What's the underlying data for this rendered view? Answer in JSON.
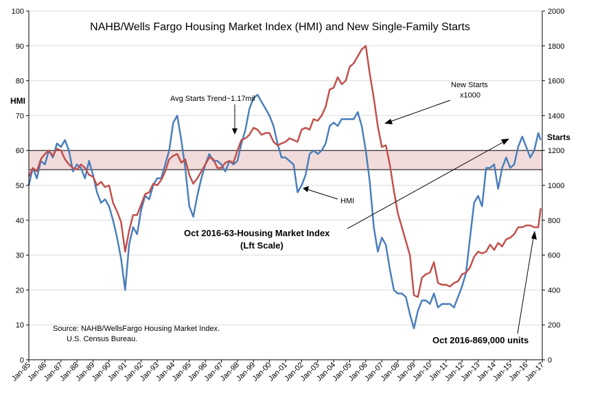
{
  "chart_data": {
    "type": "line",
    "title": "NAHB/Wells Fargo Housing Market Index (HMI) and New Single-Family Starts",
    "y_left_label": "HMI",
    "y_right_label": "Starts",
    "y_left_ticks": [
      "0",
      "10",
      "20",
      "30",
      "40",
      "50",
      "60",
      "70",
      "80",
      "90",
      "100"
    ],
    "y_right_ticks": [
      "0",
      "200",
      "400",
      "600",
      "800",
      "1000",
      "1200",
      "1400",
      "1600",
      "1800",
      "2000"
    ],
    "ylim_left": [
      0,
      100
    ],
    "ylim_right": [
      0,
      2000
    ],
    "x_tick_labels": [
      "Jan-85",
      "Jan-86",
      "Jan-87",
      "Jan-88",
      "Jan-89",
      "Jan-90",
      "Jan-91",
      "Jan-92",
      "Jan-93",
      "Jan-94",
      "Jan-95",
      "Jan-96",
      "Jan-97",
      "Jan-98",
      "Jan-99",
      "Jan-00",
      "Jan-01",
      "Jan-02",
      "Jan-03",
      "Jan-04",
      "Jan-05",
      "Jan-06",
      "Jan-07",
      "Jan-08",
      "Jan-09",
      "Jan-10",
      "Jan-11",
      "Jan-12",
      "Jan-13",
      "Jan-14",
      "Jan-15",
      "Jan-16",
      "Jan-17"
    ],
    "x_range_years": [
      1985,
      2017
    ],
    "grid": "horizontal",
    "band": {
      "axis": "left",
      "from": 54.5,
      "to": 60
    },
    "series": [
      {
        "key": "hmi",
        "axis": "left",
        "color": "#4a7ebb",
        "points": [
          [
            1985.0,
            50
          ],
          [
            1985.25,
            55
          ],
          [
            1985.5,
            52
          ],
          [
            1985.75,
            57
          ],
          [
            1986.0,
            56
          ],
          [
            1986.25,
            60
          ],
          [
            1986.5,
            58
          ],
          [
            1986.75,
            62
          ],
          [
            1987.0,
            61
          ],
          [
            1987.25,
            63
          ],
          [
            1987.5,
            60
          ],
          [
            1987.75,
            54
          ],
          [
            1988.0,
            56
          ],
          [
            1988.25,
            55
          ],
          [
            1988.5,
            52
          ],
          [
            1988.75,
            57
          ],
          [
            1989.0,
            53
          ],
          [
            1989.25,
            48
          ],
          [
            1989.5,
            45
          ],
          [
            1989.75,
            46
          ],
          [
            1990.0,
            44
          ],
          [
            1990.25,
            40
          ],
          [
            1990.5,
            35
          ],
          [
            1990.75,
            29
          ],
          [
            1991.0,
            20
          ],
          [
            1991.25,
            33
          ],
          [
            1991.5,
            38
          ],
          [
            1991.75,
            36
          ],
          [
            1992.0,
            43
          ],
          [
            1992.25,
            47
          ],
          [
            1992.5,
            46
          ],
          [
            1992.75,
            50
          ],
          [
            1993.0,
            52
          ],
          [
            1993.25,
            52
          ],
          [
            1993.5,
            56
          ],
          [
            1993.75,
            60
          ],
          [
            1994.0,
            68
          ],
          [
            1994.25,
            70
          ],
          [
            1994.5,
            63
          ],
          [
            1994.75,
            55
          ],
          [
            1995.0,
            44
          ],
          [
            1995.25,
            41
          ],
          [
            1995.5,
            47
          ],
          [
            1995.75,
            52
          ],
          [
            1996.0,
            56
          ],
          [
            1996.25,
            59
          ],
          [
            1996.5,
            57
          ],
          [
            1996.75,
            57
          ],
          [
            1997.0,
            56
          ],
          [
            1997.25,
            54
          ],
          [
            1997.5,
            57
          ],
          [
            1997.75,
            56
          ],
          [
            1998.0,
            57
          ],
          [
            1998.25,
            62
          ],
          [
            1998.5,
            66
          ],
          [
            1998.75,
            72
          ],
          [
            1999.0,
            75
          ],
          [
            1999.25,
            76
          ],
          [
            1999.5,
            74
          ],
          [
            1999.75,
            72
          ],
          [
            2000.0,
            70
          ],
          [
            2000.25,
            67
          ],
          [
            2000.5,
            62
          ],
          [
            2000.75,
            58
          ],
          [
            2001.0,
            58
          ],
          [
            2001.25,
            57
          ],
          [
            2001.5,
            56
          ],
          [
            2001.75,
            48
          ],
          [
            2002.0,
            50
          ],
          [
            2002.25,
            53
          ],
          [
            2002.5,
            59
          ],
          [
            2002.75,
            60
          ],
          [
            2003.0,
            59
          ],
          [
            2003.25,
            60
          ],
          [
            2003.5,
            62
          ],
          [
            2003.75,
            67
          ],
          [
            2004.0,
            68
          ],
          [
            2004.25,
            67
          ],
          [
            2004.5,
            69
          ],
          [
            2004.75,
            69
          ],
          [
            2005.0,
            69
          ],
          [
            2005.25,
            69
          ],
          [
            2005.5,
            71
          ],
          [
            2005.75,
            67
          ],
          [
            2006.0,
            60
          ],
          [
            2006.25,
            51
          ],
          [
            2006.5,
            38
          ],
          [
            2006.75,
            31
          ],
          [
            2007.0,
            35
          ],
          [
            2007.25,
            33
          ],
          [
            2007.5,
            26
          ],
          [
            2007.75,
            20
          ],
          [
            2008.0,
            19
          ],
          [
            2008.25,
            19
          ],
          [
            2008.5,
            18
          ],
          [
            2008.75,
            13
          ],
          [
            2009.0,
            9
          ],
          [
            2009.25,
            14
          ],
          [
            2009.5,
            17
          ],
          [
            2009.75,
            17
          ],
          [
            2010.0,
            16
          ],
          [
            2010.25,
            19
          ],
          [
            2010.5,
            15
          ],
          [
            2010.75,
            16
          ],
          [
            2011.0,
            16
          ],
          [
            2011.25,
            16
          ],
          [
            2011.5,
            15
          ],
          [
            2011.75,
            18
          ],
          [
            2012.0,
            21
          ],
          [
            2012.25,
            25
          ],
          [
            2012.5,
            35
          ],
          [
            2012.75,
            45
          ],
          [
            2013.0,
            47
          ],
          [
            2013.25,
            44
          ],
          [
            2013.5,
            55
          ],
          [
            2013.75,
            55
          ],
          [
            2014.0,
            56
          ],
          [
            2014.25,
            49
          ],
          [
            2014.5,
            55
          ],
          [
            2014.75,
            58
          ],
          [
            2015.0,
            55
          ],
          [
            2015.25,
            56
          ],
          [
            2015.5,
            61
          ],
          [
            2015.75,
            64
          ],
          [
            2016.0,
            61
          ],
          [
            2016.25,
            58
          ],
          [
            2016.5,
            60
          ],
          [
            2016.75,
            65
          ],
          [
            2016.9,
            63
          ]
        ]
      },
      {
        "key": "starts",
        "axis": "right",
        "color": "#c0504d",
        "points": [
          [
            1985.0,
            1050
          ],
          [
            1985.25,
            1100
          ],
          [
            1985.5,
            1080
          ],
          [
            1985.75,
            1150
          ],
          [
            1986.0,
            1180
          ],
          [
            1986.25,
            1200
          ],
          [
            1986.5,
            1170
          ],
          [
            1986.75,
            1210
          ],
          [
            1987.0,
            1200
          ],
          [
            1987.25,
            1150
          ],
          [
            1987.5,
            1120
          ],
          [
            1987.75,
            1100
          ],
          [
            1988.0,
            1090
          ],
          [
            1988.25,
            1120
          ],
          [
            1988.5,
            1100
          ],
          [
            1988.75,
            1060
          ],
          [
            1989.0,
            1050
          ],
          [
            1989.25,
            1000
          ],
          [
            1989.5,
            1020
          ],
          [
            1989.75,
            990
          ],
          [
            1990.0,
            1000
          ],
          [
            1990.25,
            900
          ],
          [
            1990.5,
            850
          ],
          [
            1990.75,
            790
          ],
          [
            1991.0,
            620
          ],
          [
            1991.25,
            740
          ],
          [
            1991.5,
            830
          ],
          [
            1991.75,
            830
          ],
          [
            1992.0,
            890
          ],
          [
            1992.25,
            950
          ],
          [
            1992.5,
            960
          ],
          [
            1992.75,
            1010
          ],
          [
            1993.0,
            1000
          ],
          [
            1993.25,
            1030
          ],
          [
            1993.5,
            1080
          ],
          [
            1993.75,
            1150
          ],
          [
            1994.0,
            1170
          ],
          [
            1994.25,
            1180
          ],
          [
            1994.5,
            1130
          ],
          [
            1994.75,
            1150
          ],
          [
            1995.0,
            1060
          ],
          [
            1995.25,
            1010
          ],
          [
            1995.5,
            1040
          ],
          [
            1995.75,
            1080
          ],
          [
            1996.0,
            1120
          ],
          [
            1996.25,
            1160
          ],
          [
            1996.5,
            1150
          ],
          [
            1996.75,
            1100
          ],
          [
            1997.0,
            1100
          ],
          [
            1997.25,
            1130
          ],
          [
            1997.5,
            1140
          ],
          [
            1997.75,
            1130
          ],
          [
            1998.0,
            1200
          ],
          [
            1998.25,
            1260
          ],
          [
            1998.5,
            1270
          ],
          [
            1998.75,
            1290
          ],
          [
            1999.0,
            1330
          ],
          [
            1999.25,
            1320
          ],
          [
            1999.5,
            1290
          ],
          [
            1999.75,
            1300
          ],
          [
            2000.0,
            1300
          ],
          [
            2000.25,
            1250
          ],
          [
            2000.5,
            1230
          ],
          [
            2000.75,
            1240
          ],
          [
            2001.0,
            1250
          ],
          [
            2001.25,
            1270
          ],
          [
            2001.5,
            1260
          ],
          [
            2001.75,
            1250
          ],
          [
            2002.0,
            1320
          ],
          [
            2002.25,
            1330
          ],
          [
            2002.5,
            1320
          ],
          [
            2002.75,
            1380
          ],
          [
            2003.0,
            1370
          ],
          [
            2003.25,
            1400
          ],
          [
            2003.5,
            1450
          ],
          [
            2003.75,
            1550
          ],
          [
            2004.0,
            1560
          ],
          [
            2004.25,
            1620
          ],
          [
            2004.5,
            1580
          ],
          [
            2004.75,
            1600
          ],
          [
            2005.0,
            1680
          ],
          [
            2005.25,
            1700
          ],
          [
            2005.5,
            1740
          ],
          [
            2005.75,
            1780
          ],
          [
            2006.0,
            1800
          ],
          [
            2006.25,
            1640
          ],
          [
            2006.5,
            1500
          ],
          [
            2006.75,
            1340
          ],
          [
            2007.0,
            1220
          ],
          [
            2007.25,
            1230
          ],
          [
            2007.5,
            1120
          ],
          [
            2007.75,
            970
          ],
          [
            2008.0,
            840
          ],
          [
            2008.25,
            760
          ],
          [
            2008.5,
            680
          ],
          [
            2008.75,
            600
          ],
          [
            2009.0,
            370
          ],
          [
            2009.25,
            360
          ],
          [
            2009.5,
            470
          ],
          [
            2009.75,
            490
          ],
          [
            2010.0,
            500
          ],
          [
            2010.25,
            560
          ],
          [
            2010.5,
            440
          ],
          [
            2010.75,
            430
          ],
          [
            2011.0,
            430
          ],
          [
            2011.25,
            420
          ],
          [
            2011.5,
            440
          ],
          [
            2011.75,
            450
          ],
          [
            2012.0,
            490
          ],
          [
            2012.25,
            500
          ],
          [
            2012.5,
            530
          ],
          [
            2012.75,
            590
          ],
          [
            2013.0,
            620
          ],
          [
            2013.25,
            610
          ],
          [
            2013.5,
            620
          ],
          [
            2013.75,
            660
          ],
          [
            2014.0,
            630
          ],
          [
            2014.25,
            670
          ],
          [
            2014.5,
            650
          ],
          [
            2014.75,
            690
          ],
          [
            2015.0,
            700
          ],
          [
            2015.25,
            720
          ],
          [
            2015.5,
            760
          ],
          [
            2015.75,
            760
          ],
          [
            2016.0,
            770
          ],
          [
            2016.25,
            770
          ],
          [
            2016.5,
            760
          ],
          [
            2016.75,
            760
          ],
          [
            2016.9,
            869
          ]
        ]
      }
    ],
    "annotations": {
      "avg_trend": "Avg Starts Trend~1.17mil",
      "new_starts_line1": "New Starts",
      "new_starts_line2": "x1000",
      "hmi": "HMI",
      "oct_hmi_line1": "Oct 2016-63-Housing Market Index",
      "oct_hmi_line2": "(Lft Scale)",
      "source_line1": "Source: NAHB/WellsFargo Housing Market Index.",
      "source_line2": "U.S. Census Bureau.",
      "oct_starts": "Oct 2016-869,000 units"
    }
  }
}
